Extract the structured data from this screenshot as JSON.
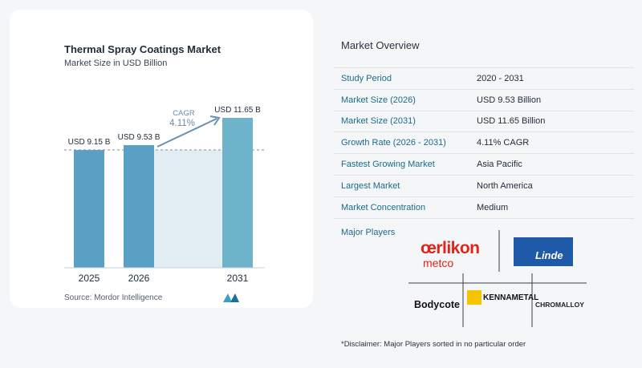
{
  "chart_data": {
    "type": "bar",
    "title": "Thermal Spray Coatings Market",
    "subtitle": "Market Size in USD Billion",
    "categories": [
      "2025",
      "2026",
      "2031"
    ],
    "values": [
      9.15,
      9.53,
      11.65
    ],
    "value_labels": [
      "USD 9.15 B",
      "USD 9.53 B",
      "USD 11.65 B"
    ],
    "cagr_label": "CAGR",
    "cagr_value": "4.11%",
    "source": "Source:  Mordor Intelligence",
    "bar_color": "#5a9fc4",
    "bar_color_last": "#6db3c9"
  },
  "overview": {
    "title": "Market Overview",
    "rows": [
      {
        "label": "Study Period",
        "value": "2020 - 2031"
      },
      {
        "label": "Market Size (2026)",
        "value": "USD 9.53 Billion"
      },
      {
        "label": "Market Size (2031)",
        "value": "USD 11.65 Billion"
      },
      {
        "label": "Growth Rate (2026 - 2031)",
        "value": "4.11% CAGR"
      },
      {
        "label": "Fastest Growing Market",
        "value": "Asia Pacific"
      },
      {
        "label": "Largest Market",
        "value": "North America"
      },
      {
        "label": "Market Concentration",
        "value": "Medium"
      }
    ]
  },
  "players": {
    "title": "Major Players",
    "logos": {
      "oerlikon_top": "œrlikon",
      "oerlikon_bottom": "metco",
      "linde": "Linde",
      "bodycote": "Bodycote",
      "kennametal": "KENNAMETAL",
      "chromalloy": "CHROMALLOY"
    },
    "disclaimer": "*Disclaimer: Major Players sorted in no particular order"
  }
}
